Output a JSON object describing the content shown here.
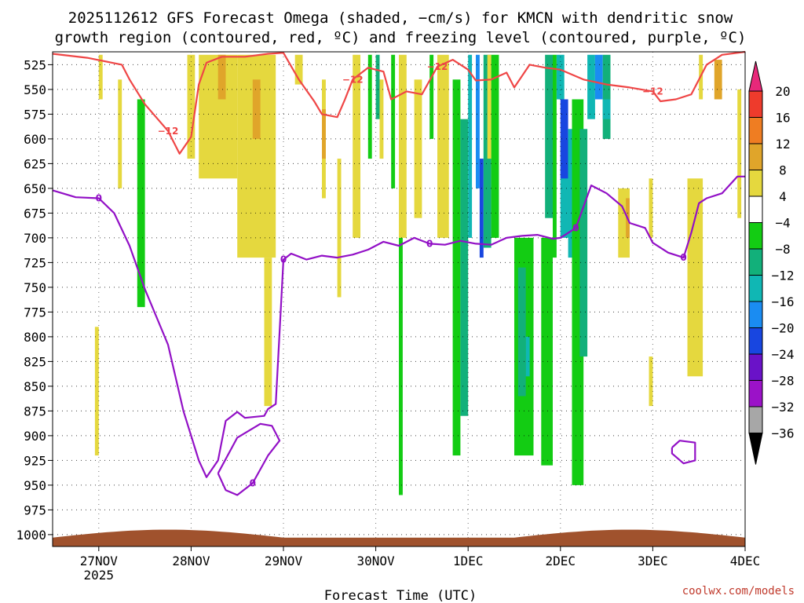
{
  "title_line1": "2025112612 GFS Forecast Omega (shaded, −cm/s) for KMCN with dendritic snow",
  "title_line2": "growth region (contoured, red, ºC) and freezing level (contoured, purple, ºC)",
  "credit": "coolwx.com/models",
  "chart_data": {
    "type": "heatmap",
    "title": "2025112612 GFS Forecast Omega (shaded, −cm/s) for KMCN with dendritic snow growth region (contoured, red, ºC) and freezing level (contoured, purple, ºC)",
    "xlabel": "Forecast Time (UTC)",
    "ylabel": "",
    "x_time_range_hours_from_init": [
      0,
      180
    ],
    "x_ticks": [
      {
        "hours": 12,
        "label": "27NOV",
        "sublabel": "2025"
      },
      {
        "hours": 36,
        "label": "28NOV",
        "sublabel": ""
      },
      {
        "hours": 60,
        "label": "29NOV",
        "sublabel": ""
      },
      {
        "hours": 84,
        "label": "30NOV",
        "sublabel": ""
      },
      {
        "hours": 108,
        "label": "1DEC",
        "sublabel": ""
      },
      {
        "hours": 132,
        "label": "2DEC",
        "sublabel": ""
      },
      {
        "hours": 156,
        "label": "3DEC",
        "sublabel": ""
      },
      {
        "hours": 180,
        "label": "4DEC",
        "sublabel": ""
      }
    ],
    "y_pressure_levels_hpa": [
      525,
      550,
      575,
      600,
      625,
      650,
      675,
      700,
      725,
      750,
      775,
      800,
      825,
      850,
      875,
      900,
      925,
      950,
      975,
      1000
    ],
    "ylim": [
      512,
      1012
    ],
    "y_inverted": true,
    "grid": true,
    "colorbar": {
      "labels": [
        "20",
        "16",
        "12",
        "8",
        "4",
        "−4",
        "−8",
        "−12",
        "−16",
        "−20",
        "−24",
        "−28",
        "−32",
        "−36"
      ],
      "colors": [
        "#e8287a",
        "#ee3b2c",
        "#ef7d22",
        "#e0a52a",
        "#e5d83e",
        "#ffffff",
        "#13cc13",
        "#12b07a",
        "#10b7b4",
        "#1a8cf2",
        "#1846e0",
        "#6a12c8",
        "#9b12c8",
        "#a7a7a7",
        "#000000"
      ],
      "extends": [
        "max",
        "min"
      ]
    },
    "contours": [
      {
        "name": "dendritic growth region",
        "color": "#ef4646",
        "level_labels": [
          "−12",
          "−12",
          "−12",
          "−12"
        ],
        "points": [
          [
            0,
            514
          ],
          [
            9,
            518
          ],
          [
            18,
            525
          ],
          [
            20,
            540
          ],
          [
            24,
            565
          ],
          [
            30,
            592
          ],
          [
            33,
            615
          ],
          [
            36,
            598
          ],
          [
            38,
            545
          ],
          [
            40,
            523
          ],
          [
            44,
            517
          ],
          [
            50,
            517
          ],
          [
            56,
            514
          ],
          [
            60,
            513
          ],
          [
            64,
            540
          ],
          [
            68,
            562
          ],
          [
            70,
            575
          ],
          [
            74,
            578
          ],
          [
            76,
            560
          ],
          [
            78,
            540
          ],
          [
            82,
            528
          ],
          [
            86,
            532
          ],
          [
            88,
            560
          ],
          [
            92,
            552
          ],
          [
            96,
            555
          ],
          [
            100,
            527
          ],
          [
            104,
            520
          ],
          [
            108,
            530
          ],
          [
            110,
            541
          ],
          [
            114,
            540
          ],
          [
            118,
            533
          ],
          [
            120,
            548
          ],
          [
            124,
            525
          ],
          [
            128,
            528
          ],
          [
            132,
            530
          ],
          [
            138,
            540
          ],
          [
            144,
            545
          ],
          [
            150,
            548
          ],
          [
            156,
            552
          ],
          [
            158,
            562
          ],
          [
            162,
            560
          ],
          [
            166,
            555
          ],
          [
            168,
            540
          ],
          [
            170,
            525
          ],
          [
            174,
            515
          ],
          [
            180,
            512
          ]
        ]
      },
      {
        "name": "freezing level",
        "color": "#9210c6",
        "level_labels": [
          "0",
          "0",
          "0",
          "0",
          "0",
          "0"
        ],
        "points": [
          [
            0,
            652
          ],
          [
            6,
            659
          ],
          [
            12,
            660
          ],
          [
            16,
            675
          ],
          [
            20,
            708
          ],
          [
            24,
            752
          ],
          [
            30,
            808
          ],
          [
            34,
            875
          ],
          [
            38,
            925
          ],
          [
            40,
            942
          ],
          [
            43,
            925
          ],
          [
            45,
            885
          ],
          [
            48,
            876
          ],
          [
            50,
            882
          ],
          [
            55,
            880
          ],
          [
            56,
            873
          ],
          [
            58,
            868
          ],
          [
            60,
            722
          ],
          [
            62,
            716
          ],
          [
            66,
            722
          ],
          [
            70,
            718
          ],
          [
            74,
            720
          ],
          [
            78,
            717
          ],
          [
            82,
            712
          ],
          [
            86,
            704
          ],
          [
            90,
            708
          ],
          [
            94,
            700
          ],
          [
            98,
            706
          ],
          [
            102,
            707
          ],
          [
            106,
            703
          ],
          [
            110,
            706
          ],
          [
            114,
            707
          ],
          [
            118,
            700
          ],
          [
            122,
            698
          ],
          [
            126,
            697
          ],
          [
            130,
            701
          ],
          [
            132,
            700
          ],
          [
            136,
            690
          ],
          [
            140,
            647
          ],
          [
            144,
            655
          ],
          [
            148,
            668
          ],
          [
            150,
            685
          ],
          [
            154,
            690
          ],
          [
            156,
            705
          ],
          [
            160,
            715
          ],
          [
            164,
            720
          ],
          [
            166,
            695
          ],
          [
            168,
            665
          ],
          [
            170,
            660
          ],
          [
            174,
            655
          ],
          [
            178,
            638
          ],
          [
            180,
            638
          ]
        ]
      },
      {
        "name": "freezing level (closed)",
        "color": "#9210c6",
        "points": [
          [
            43,
            938
          ],
          [
            45,
            955
          ],
          [
            48,
            960
          ],
          [
            52,
            948
          ],
          [
            56,
            920
          ],
          [
            59,
            905
          ],
          [
            57,
            890
          ],
          [
            54,
            888
          ],
          [
            48,
            902
          ],
          [
            43,
            938
          ]
        ]
      },
      {
        "name": "freezing level (small)",
        "color": "#9210c6",
        "points": [
          [
            161,
            912
          ],
          [
            163,
            905
          ],
          [
            167,
            907
          ],
          [
            167,
            925
          ],
          [
            164,
            928
          ],
          [
            161,
            918
          ],
          [
            161,
            912
          ]
        ]
      }
    ],
    "shaded_regions_omega_cm_s": [
      {
        "value": 4,
        "x": [
          12,
          13
        ],
        "p": [
          515,
          560
        ]
      },
      {
        "value": 4,
        "x": [
          11,
          12
        ],
        "p": [
          790,
          920
        ]
      },
      {
        "value": 4,
        "x": [
          17,
          18
        ],
        "p": [
          540,
          650
        ]
      },
      {
        "value": -4,
        "x": [
          22,
          24
        ],
        "p": [
          560,
          770
        ]
      },
      {
        "value": 4,
        "x": [
          35,
          37
        ],
        "p": [
          515,
          620
        ]
      },
      {
        "value": 4,
        "x": [
          38,
          48
        ],
        "p": [
          515,
          640
        ]
      },
      {
        "value": 8,
        "x": [
          43,
          45
        ],
        "p": [
          515,
          560
        ]
      },
      {
        "value": 4,
        "x": [
          48,
          58
        ],
        "p": [
          515,
          720
        ]
      },
      {
        "value": 4,
        "x": [
          55,
          57
        ],
        "p": [
          720,
          870
        ]
      },
      {
        "value": 8,
        "x": [
          52,
          54
        ],
        "p": [
          540,
          600
        ]
      },
      {
        "value": 4,
        "x": [
          63,
          65
        ],
        "p": [
          515,
          545
        ]
      },
      {
        "value": 4,
        "x": [
          70,
          71
        ],
        "p": [
          540,
          660
        ]
      },
      {
        "value": 8,
        "x": [
          70,
          71
        ],
        "p": [
          570,
          620
        ]
      },
      {
        "value": 4,
        "x": [
          74,
          75
        ],
        "p": [
          620,
          760
        ]
      },
      {
        "value": 4,
        "x": [
          78,
          80
        ],
        "p": [
          515,
          700
        ]
      },
      {
        "value": -4,
        "x": [
          82,
          83
        ],
        "p": [
          515,
          620
        ]
      },
      {
        "value": -8,
        "x": [
          84,
          85
        ],
        "p": [
          515,
          580
        ]
      },
      {
        "value": 4,
        "x": [
          85,
          86
        ],
        "p": [
          540,
          620
        ]
      },
      {
        "value": -4,
        "x": [
          88,
          89
        ],
        "p": [
          515,
          650
        ]
      },
      {
        "value": -4,
        "x": [
          90,
          91
        ],
        "p": [
          700,
          960
        ]
      },
      {
        "value": 4,
        "x": [
          90,
          92
        ],
        "p": [
          515,
          700
        ]
      },
      {
        "value": 4,
        "x": [
          94,
          96
        ],
        "p": [
          540,
          680
        ]
      },
      {
        "value": -4,
        "x": [
          98,
          99
        ],
        "p": [
          515,
          600
        ]
      },
      {
        "value": 4,
        "x": [
          100,
          103
        ],
        "p": [
          515,
          700
        ]
      },
      {
        "value": -4,
        "x": [
          104,
          106
        ],
        "p": [
          540,
          920
        ]
      },
      {
        "value": -8,
        "x": [
          106,
          108
        ],
        "p": [
          580,
          880
        ]
      },
      {
        "value": -12,
        "x": [
          108,
          109
        ],
        "p": [
          515,
          700
        ]
      },
      {
        "value": -16,
        "x": [
          110,
          111
        ],
        "p": [
          515,
          650
        ]
      },
      {
        "value": -20,
        "x": [
          111,
          112
        ],
        "p": [
          620,
          720
        ]
      },
      {
        "value": -8,
        "x": [
          112,
          114
        ],
        "p": [
          515,
          710
        ]
      },
      {
        "value": -4,
        "x": [
          114,
          116
        ],
        "p": [
          515,
          700
        ]
      },
      {
        "value": 4,
        "x": [
          113,
          114
        ],
        "p": [
          515,
          620
        ]
      },
      {
        "value": -4,
        "x": [
          120,
          125
        ],
        "p": [
          700,
          920
        ]
      },
      {
        "value": -8,
        "x": [
          121,
          123
        ],
        "p": [
          730,
          860
        ]
      },
      {
        "value": -12,
        "x": [
          123,
          124
        ],
        "p": [
          800,
          840
        ]
      },
      {
        "value": -4,
        "x": [
          127,
          130
        ],
        "p": [
          700,
          930
        ]
      },
      {
        "value": -8,
        "x": [
          128,
          130
        ],
        "p": [
          515,
          680
        ]
      },
      {
        "value": -4,
        "x": [
          130,
          131
        ],
        "p": [
          515,
          720
        ]
      },
      {
        "value": -12,
        "x": [
          131,
          133
        ],
        "p": [
          515,
          560
        ]
      },
      {
        "value": -12,
        "x": [
          132,
          134
        ],
        "p": [
          600,
          700
        ]
      },
      {
        "value": -20,
        "x": [
          132,
          134
        ],
        "p": [
          560,
          640
        ]
      },
      {
        "value": -8,
        "x": [
          134,
          136
        ],
        "p": [
          600,
          700
        ]
      },
      {
        "value": -12,
        "x": [
          134,
          137
        ],
        "p": [
          590,
          720
        ]
      },
      {
        "value": -16,
        "x": [
          135,
          137
        ],
        "p": [
          630,
          900
        ]
      },
      {
        "value": -20,
        "x": [
          135,
          137
        ],
        "p": [
          640,
          680
        ]
      },
      {
        "value": -24,
        "x": [
          135,
          137
        ],
        "p": [
          650,
          820
        ]
      },
      {
        "value": -28,
        "x": [
          135,
          137
        ],
        "p": [
          660,
          810
        ]
      },
      {
        "value": -32,
        "x": [
          136,
          137
        ],
        "p": [
          655,
          785
        ]
      },
      {
        "value": -36,
        "x": [
          136,
          137
        ],
        "p": [
          667,
          775
        ]
      },
      {
        "value": -4,
        "x": [
          135,
          138
        ],
        "p": [
          560,
          950
        ]
      },
      {
        "value": -8,
        "x": [
          137,
          139
        ],
        "p": [
          590,
          820
        ]
      },
      {
        "value": -12,
        "x": [
          139,
          141
        ],
        "p": [
          515,
          580
        ]
      },
      {
        "value": -16,
        "x": [
          141,
          143
        ],
        "p": [
          515,
          560
        ]
      },
      {
        "value": -8,
        "x": [
          143,
          145
        ],
        "p": [
          515,
          600
        ]
      },
      {
        "value": -12,
        "x": [
          143,
          145
        ],
        "p": [
          560,
          580
        ]
      },
      {
        "value": 4,
        "x": [
          147,
          150
        ],
        "p": [
          650,
          720
        ]
      },
      {
        "value": 8,
        "x": [
          149,
          150
        ],
        "p": [
          660,
          700
        ]
      },
      {
        "value": 4,
        "x": [
          155,
          156
        ],
        "p": [
          640,
          700
        ]
      },
      {
        "value": 4,
        "x": [
          155,
          156
        ],
        "p": [
          820,
          870
        ]
      },
      {
        "value": 4,
        "x": [
          165,
          169
        ],
        "p": [
          640,
          840
        ]
      },
      {
        "value": 4,
        "x": [
          168,
          169
        ],
        "p": [
          515,
          560
        ]
      },
      {
        "value": 8,
        "x": [
          172,
          174
        ],
        "p": [
          520,
          560
        ]
      },
      {
        "value": 4,
        "x": [
          178,
          179
        ],
        "p": [
          550,
          680
        ]
      }
    ],
    "terrain": {
      "color": "#a0522d",
      "top_p_range": [
        1003,
        995
      ]
    }
  }
}
